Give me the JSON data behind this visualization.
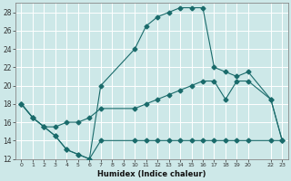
{
  "xlabel": "Humidex (Indice chaleur)",
  "bg_color": "#cde8e8",
  "grid_color": "#b8d8d8",
  "line_color": "#1a6b6b",
  "xlim": [
    -0.5,
    23.5
  ],
  "ylim": [
    12,
    29
  ],
  "xticks": [
    0,
    1,
    2,
    3,
    4,
    5,
    6,
    7,
    8,
    9,
    10,
    11,
    12,
    13,
    14,
    15,
    16,
    17,
    18,
    19,
    20,
    22,
    23
  ],
  "yticks": [
    12,
    14,
    16,
    18,
    20,
    22,
    24,
    26,
    28
  ],
  "line1_x": [
    0,
    1,
    2,
    3,
    4,
    5,
    6,
    7,
    10,
    11,
    12,
    13,
    14,
    15,
    16,
    17,
    18,
    19,
    20,
    22,
    23
  ],
  "line1_y": [
    18,
    16.5,
    15.5,
    14.5,
    13.0,
    12.5,
    12.0,
    14.0,
    14.0,
    14.0,
    14.0,
    14.0,
    14.0,
    14.0,
    14.0,
    14.0,
    14.0,
    14.0,
    14.0,
    14.0,
    14.0
  ],
  "line2_x": [
    0,
    1,
    2,
    3,
    4,
    5,
    6,
    7,
    10,
    11,
    12,
    13,
    14,
    15,
    16,
    17,
    18,
    19,
    20,
    22,
    23
  ],
  "line2_y": [
    18,
    16.5,
    15.5,
    14.5,
    13.0,
    12.5,
    12.0,
    20.0,
    24.0,
    26.5,
    27.5,
    28.0,
    28.5,
    28.5,
    28.5,
    22.0,
    21.5,
    21.0,
    21.5,
    18.5,
    14.0
  ],
  "line3_x": [
    0,
    1,
    2,
    3,
    4,
    5,
    6,
    7,
    10,
    11,
    12,
    13,
    14,
    15,
    16,
    17,
    18,
    19,
    20,
    22,
    23
  ],
  "line3_y": [
    18,
    16.5,
    15.5,
    15.5,
    16.0,
    16.0,
    16.5,
    17.5,
    17.5,
    18.0,
    18.5,
    19.0,
    19.5,
    20.0,
    20.5,
    20.5,
    18.5,
    20.5,
    20.5,
    18.5,
    14.0
  ]
}
